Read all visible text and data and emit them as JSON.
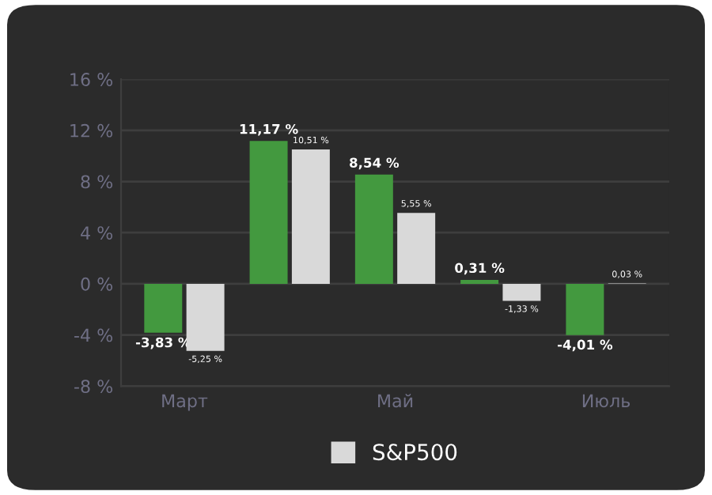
{
  "chart_data": {
    "type": "bar",
    "categories": [
      "Март",
      null,
      "Май",
      null,
      "Июль"
    ],
    "series": [
      {
        "color": "#43993f",
        "values": [
          -3.83,
          11.17,
          8.54,
          0.31,
          -4.01
        ],
        "value_labels": [
          "-3,83 %",
          "11,17 %",
          "8,54 %",
          "0,31 %",
          "-4,01 %"
        ]
      },
      {
        "name": "S&P500",
        "color": "#d9d9d9",
        "values": [
          -5.25,
          10.51,
          5.55,
          -1.33,
          0.03
        ],
        "value_labels": [
          "-5,25 %",
          "10,51 %",
          "5,55 %",
          "-1,33 %",
          "0,03 %"
        ]
      }
    ],
    "ylim": [
      -8,
      16
    ],
    "yticks": [
      {
        "value": -8,
        "label": "-8 %"
      },
      {
        "value": -4,
        "label": "-4 %"
      },
      {
        "value": 0,
        "label": "0 %"
      },
      {
        "value": 4,
        "label": "4 %"
      },
      {
        "value": 8,
        "label": "8 %"
      },
      {
        "value": 12,
        "label": "12 %"
      },
      {
        "value": 16,
        "label": "16 %"
      }
    ],
    "grid": "y",
    "legend": "bottom"
  }
}
